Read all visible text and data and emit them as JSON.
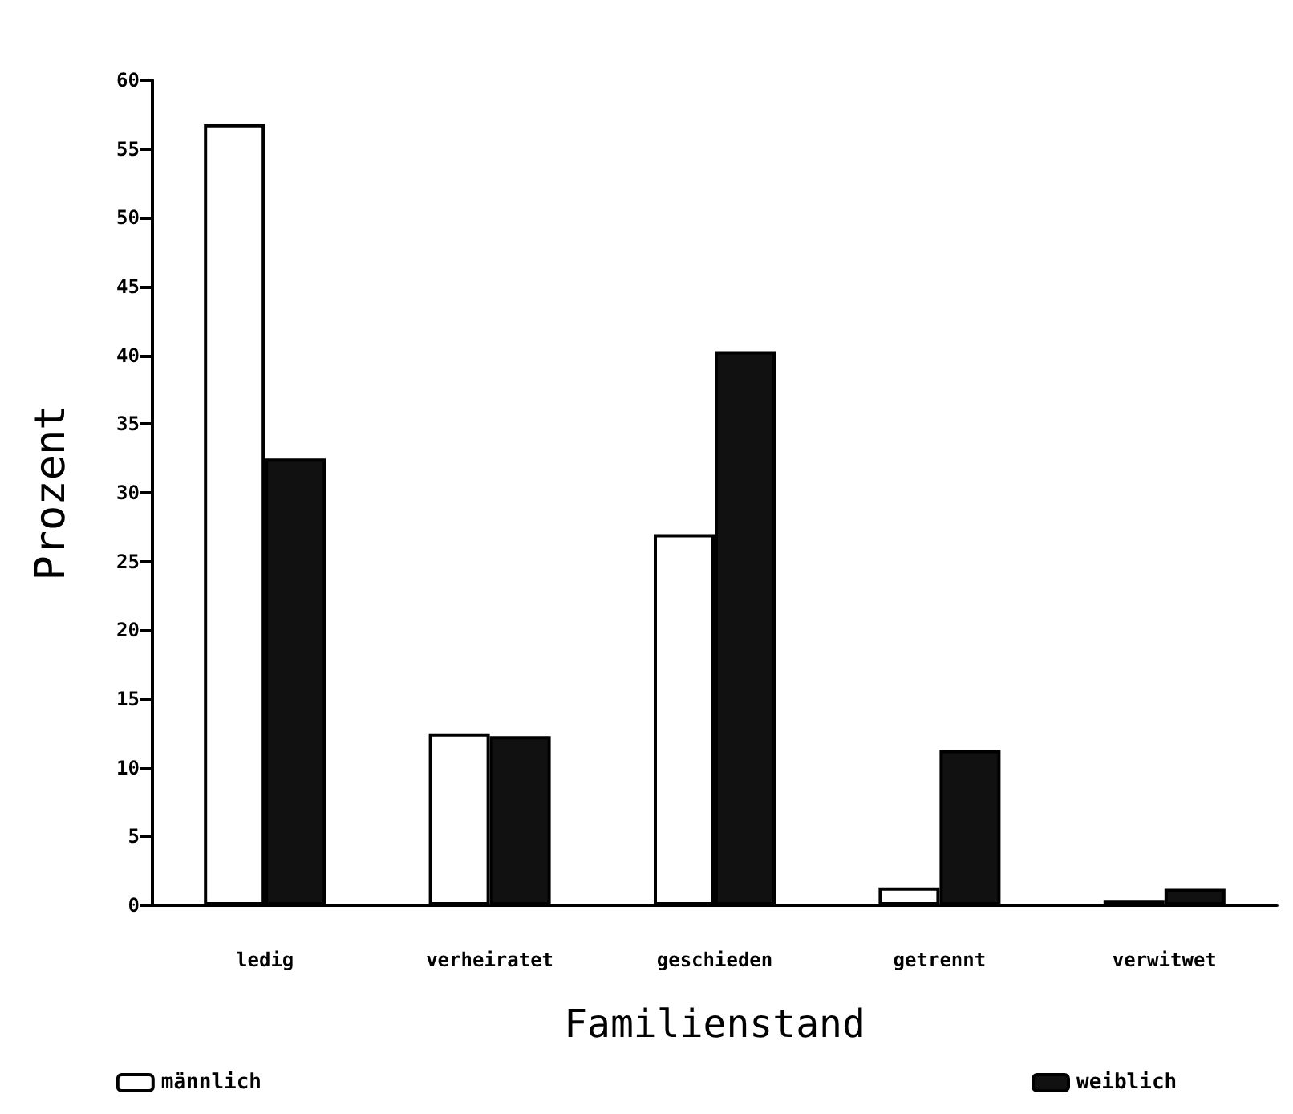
{
  "chart_data": {
    "type": "bar",
    "xlabel": "Familienstand",
    "ylabel": "Prozent",
    "categories": [
      "ledig",
      "verheiratet",
      "geschieden",
      "getrennt",
      "verwitwet"
    ],
    "series": [
      {
        "name": "männlich",
        "color": "#ffffff",
        "values": [
          56.8,
          12.5,
          27,
          1.3,
          0.4
        ]
      },
      {
        "name": "weiblich",
        "color": "#111111",
        "values": [
          32.5,
          12.3,
          40.3,
          11.3,
          1.2
        ]
      }
    ],
    "ylim": [
      0,
      60
    ],
    "yticks": [
      0,
      5,
      10,
      15,
      20,
      25,
      30,
      35,
      40,
      45,
      50,
      55,
      60
    ],
    "grid": false,
    "legend": "bottom"
  }
}
